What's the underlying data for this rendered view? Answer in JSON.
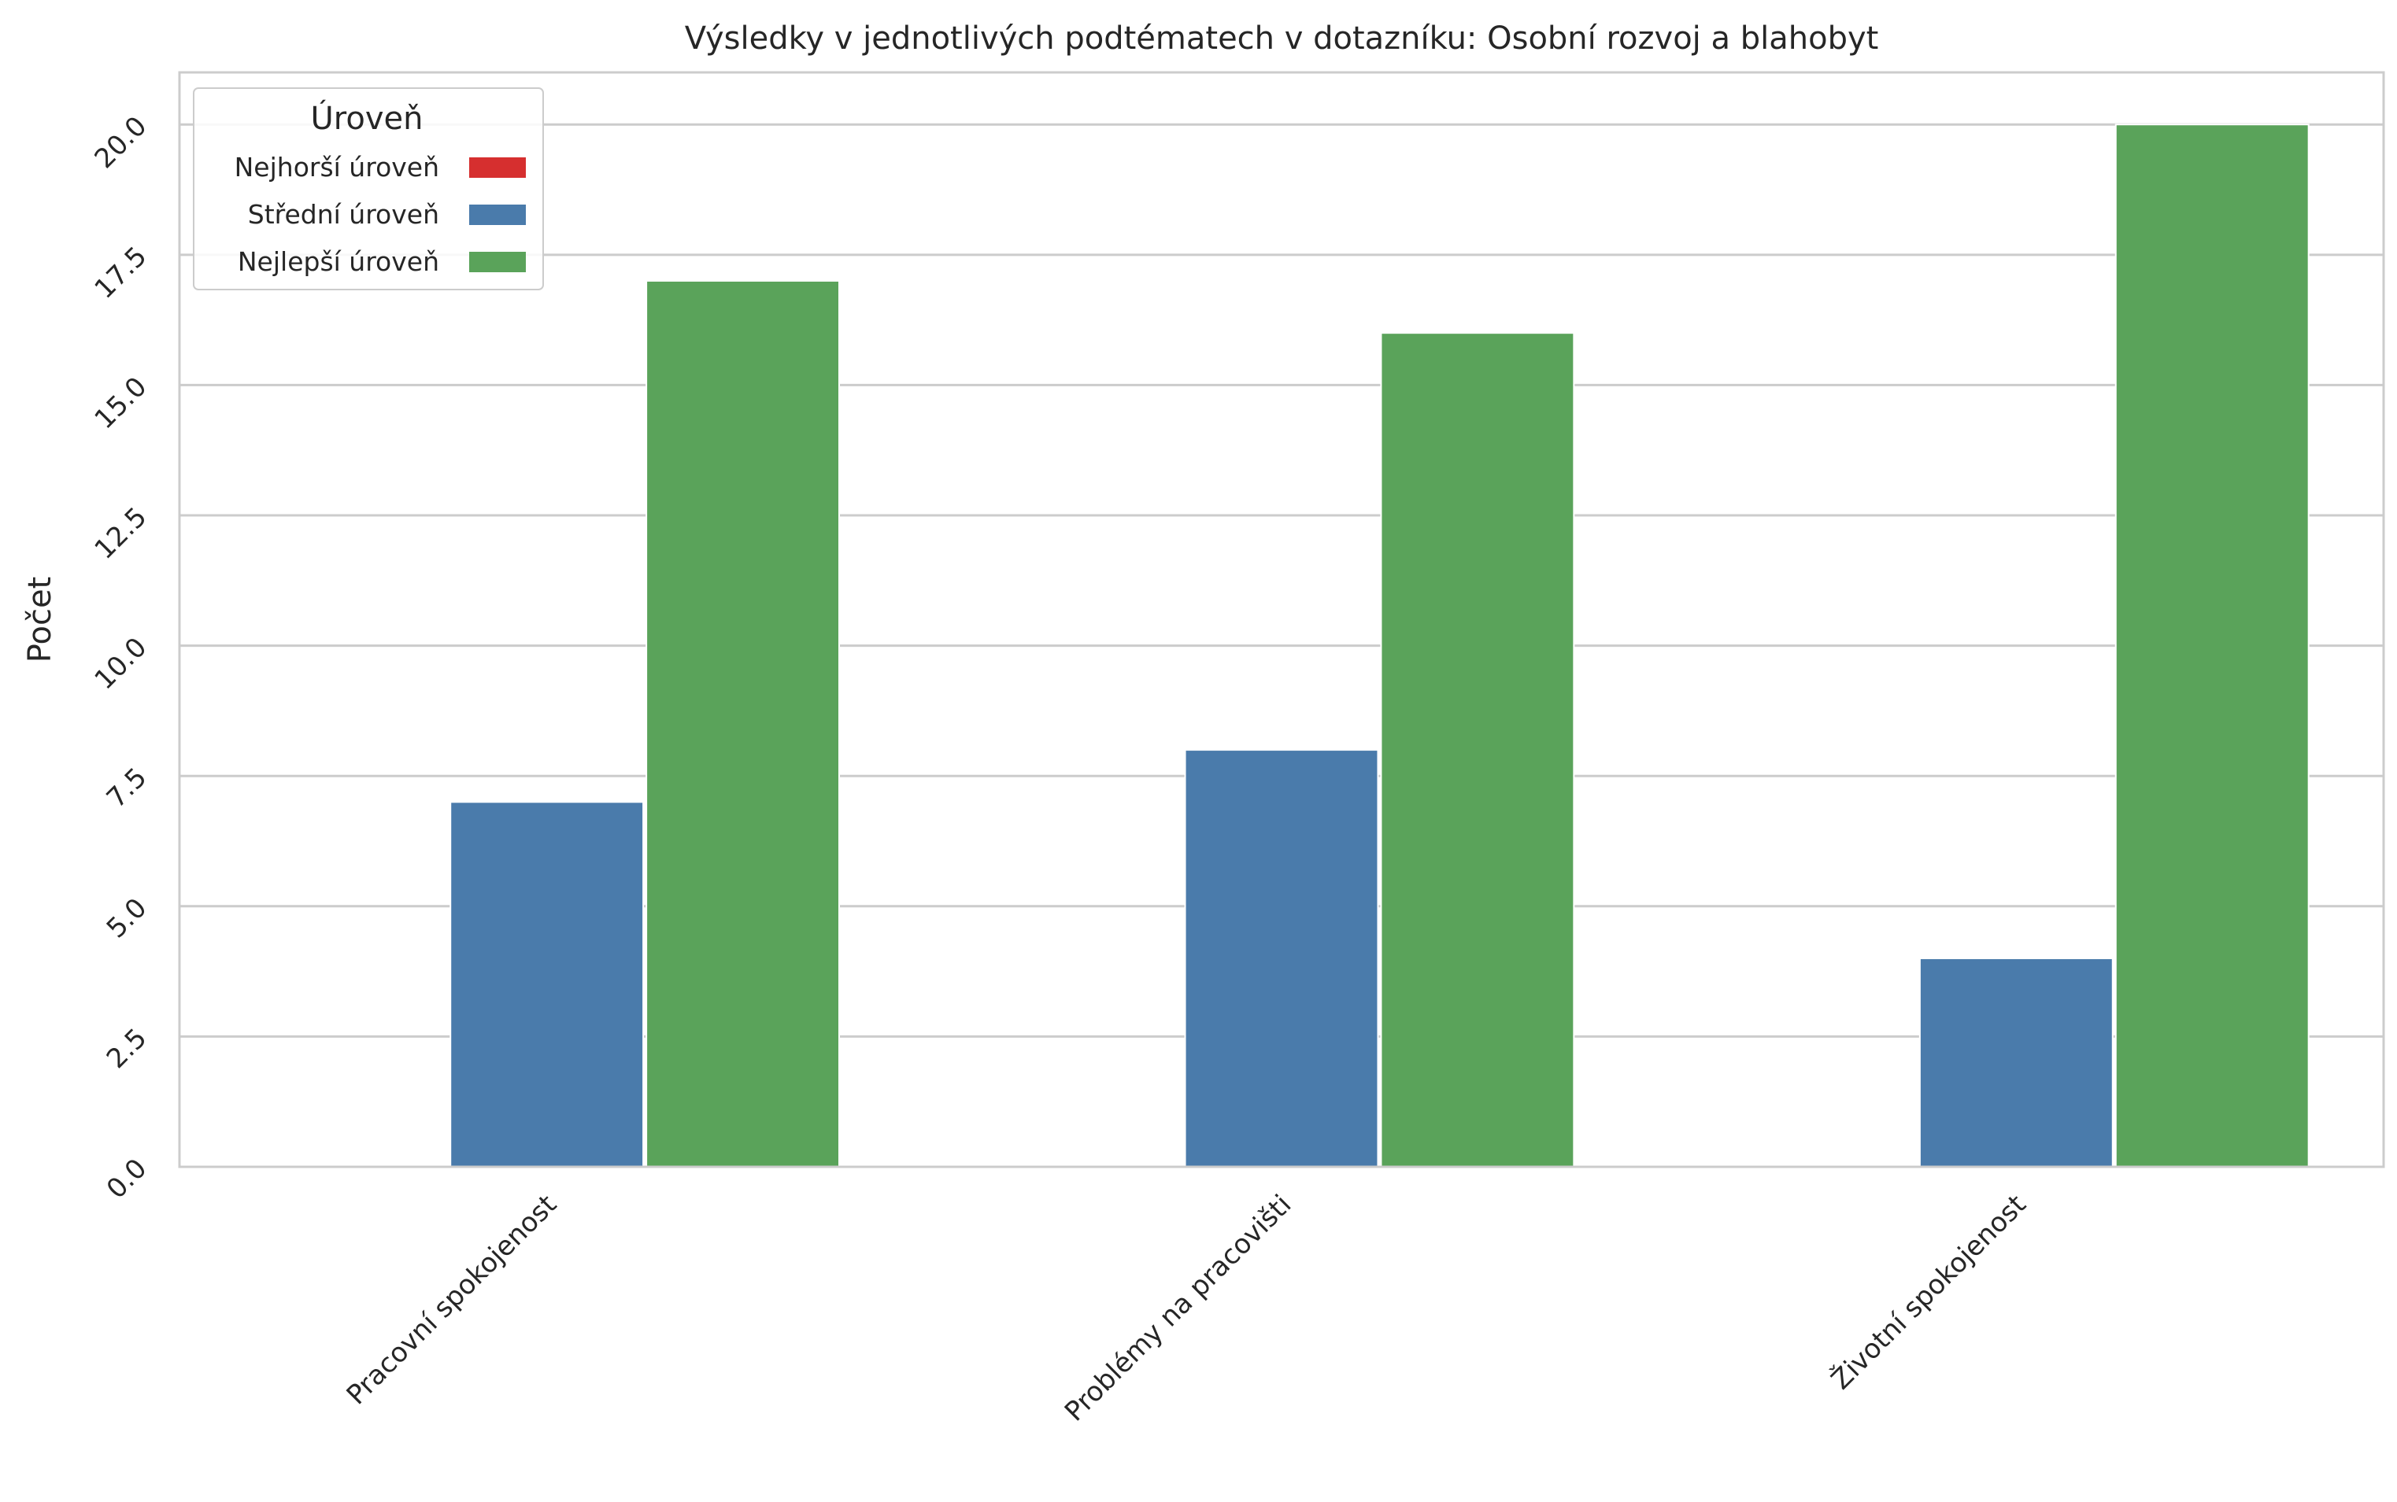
{
  "chart_data": {
    "type": "bar",
    "title": "Výsledky v jednotlivých podtématech v dotazníku: Osobní rozvoj a blahobyt",
    "xlabel": "",
    "ylabel": "Počet",
    "categories": [
      "Pracovní spokojenost",
      "Problémy na pracovišti",
      "Životní spokojenost"
    ],
    "series": [
      {
        "name": "Nejhorší úroveň",
        "color": "#d62f2f",
        "values": [
          0,
          0,
          0
        ]
      },
      {
        "name": "Střední úroveň",
        "color": "#4a7bab",
        "values": [
          7,
          8,
          4
        ]
      },
      {
        "name": "Nejlepší úroveň",
        "color": "#5aa35a",
        "values": [
          17,
          16,
          20
        ]
      }
    ],
    "ylim": [
      0,
      21
    ],
    "yticks": [
      "0.0",
      "2.5",
      "5.0",
      "7.5",
      "10.0",
      "12.5",
      "15.0",
      "17.5",
      "20.0"
    ],
    "grid": true,
    "legend": {
      "title": "Úroveň",
      "placement": "top-left"
    }
  }
}
